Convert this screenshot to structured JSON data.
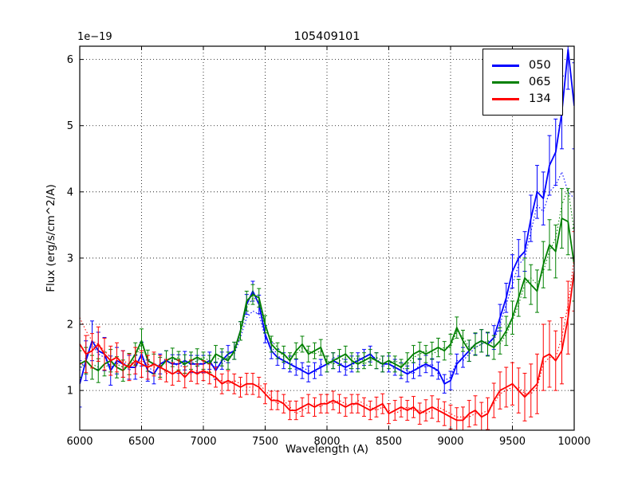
{
  "chart_data": {
    "type": "line",
    "title": "105409101",
    "offset_text": "1e−19",
    "xlabel": "Wavelength (A)",
    "ylabel": "Flux (erg/s/cm^2/A)",
    "xlim": [
      6000,
      10000
    ],
    "ylim": [
      0.4,
      6.2
    ],
    "xticks": [
      6000,
      6500,
      7000,
      7500,
      8000,
      8500,
      9000,
      9500,
      10000
    ],
    "yticks": [
      1,
      2,
      3,
      4,
      5,
      6
    ],
    "grid": true,
    "legend_position": "upper right",
    "x": [
      6000,
      6050,
      6100,
      6150,
      6200,
      6250,
      6300,
      6350,
      6400,
      6450,
      6500,
      6550,
      6600,
      6650,
      6700,
      6750,
      6800,
      6850,
      6900,
      6950,
      7000,
      7050,
      7100,
      7150,
      7200,
      7250,
      7300,
      7350,
      7400,
      7450,
      7500,
      7550,
      7600,
      7650,
      7700,
      7750,
      7800,
      7850,
      7900,
      7950,
      8000,
      8050,
      8100,
      8150,
      8200,
      8250,
      8300,
      8350,
      8400,
      8450,
      8500,
      8550,
      8600,
      8650,
      8700,
      8750,
      8800,
      8850,
      8900,
      8950,
      9000,
      9050,
      9100,
      9150,
      9200,
      9250,
      9300,
      9350,
      9400,
      9450,
      9500,
      9550,
      9600,
      9650,
      9700,
      9750,
      9800,
      9850,
      9900,
      9950,
      10000
    ],
    "series": [
      {
        "name": "050",
        "color": "#0000ff",
        "values": [
          1.1,
          1.45,
          1.75,
          1.6,
          1.55,
          1.3,
          1.45,
          1.4,
          1.35,
          1.35,
          1.55,
          1.3,
          1.25,
          1.4,
          1.45,
          1.4,
          1.4,
          1.45,
          1.4,
          1.4,
          1.4,
          1.45,
          1.3,
          1.45,
          1.55,
          1.6,
          1.9,
          2.3,
          2.5,
          2.3,
          1.85,
          1.6,
          1.5,
          1.45,
          1.4,
          1.35,
          1.3,
          1.25,
          1.3,
          1.35,
          1.4,
          1.45,
          1.4,
          1.35,
          1.4,
          1.45,
          1.5,
          1.55,
          1.45,
          1.4,
          1.4,
          1.35,
          1.3,
          1.25,
          1.3,
          1.35,
          1.4,
          1.35,
          1.3,
          1.1,
          1.15,
          1.4,
          1.5,
          1.6,
          1.7,
          1.75,
          1.7,
          1.8,
          2.1,
          2.4,
          2.8,
          3.0,
          3.1,
          3.6,
          4.0,
          3.9,
          4.4,
          4.6,
          5.2,
          6.15,
          5.3
        ],
        "err": [
          0.35,
          0.3,
          0.3,
          0.28,
          0.25,
          0.22,
          0.2,
          0.2,
          0.18,
          0.18,
          0.18,
          0.16,
          0.15,
          0.15,
          0.15,
          0.14,
          0.14,
          0.14,
          0.13,
          0.13,
          0.13,
          0.13,
          0.13,
          0.13,
          0.13,
          0.13,
          0.14,
          0.15,
          0.15,
          0.14,
          0.13,
          0.12,
          0.12,
          0.12,
          0.12,
          0.12,
          0.12,
          0.12,
          0.12,
          0.12,
          0.12,
          0.12,
          0.12,
          0.12,
          0.12,
          0.12,
          0.12,
          0.12,
          0.12,
          0.12,
          0.12,
          0.12,
          0.12,
          0.12,
          0.12,
          0.13,
          0.13,
          0.13,
          0.13,
          0.14,
          0.14,
          0.15,
          0.15,
          0.16,
          0.16,
          0.17,
          0.17,
          0.18,
          0.2,
          0.22,
          0.25,
          0.28,
          0.3,
          0.35,
          0.4,
          0.4,
          0.45,
          0.5,
          0.55,
          0.6,
          0.65
        ],
        "dotted_values": [
          1.3,
          1.5,
          1.7,
          1.55,
          1.5,
          1.35,
          1.4,
          1.45,
          1.3,
          1.4,
          1.5,
          1.35,
          1.3,
          1.35,
          1.5,
          1.45,
          1.35,
          1.4,
          1.45,
          1.35,
          1.45,
          1.4,
          1.35,
          1.4,
          1.5,
          1.55,
          1.8,
          2.1,
          2.2,
          2.15,
          1.8,
          1.65,
          1.55,
          1.4,
          1.45,
          1.3,
          1.35,
          1.3,
          1.25,
          1.4,
          1.35,
          1.5,
          1.45,
          1.3,
          1.35,
          1.5,
          1.45,
          1.5,
          1.5,
          1.35,
          1.45,
          1.3,
          1.35,
          1.3,
          1.25,
          1.4,
          1.35,
          1.4,
          1.25,
          1.15,
          1.2,
          1.45,
          1.45,
          1.55,
          1.65,
          1.7,
          1.75,
          1.75,
          2.0,
          2.3,
          2.6,
          2.9,
          3.0,
          3.4,
          3.8,
          3.7,
          4.0,
          4.1,
          4.3,
          4.0,
          3.9
        ]
      },
      {
        "name": "065",
        "color": "#008000",
        "values": [
          1.4,
          1.45,
          1.35,
          1.3,
          1.4,
          1.45,
          1.35,
          1.3,
          1.4,
          1.55,
          1.75,
          1.45,
          1.4,
          1.35,
          1.45,
          1.5,
          1.45,
          1.4,
          1.45,
          1.5,
          1.45,
          1.4,
          1.55,
          1.5,
          1.45,
          1.6,
          1.9,
          2.35,
          2.45,
          2.4,
          2.0,
          1.7,
          1.6,
          1.55,
          1.45,
          1.6,
          1.7,
          1.55,
          1.6,
          1.65,
          1.4,
          1.45,
          1.5,
          1.55,
          1.45,
          1.4,
          1.45,
          1.5,
          1.45,
          1.4,
          1.45,
          1.4,
          1.35,
          1.45,
          1.55,
          1.6,
          1.55,
          1.6,
          1.65,
          1.6,
          1.7,
          1.95,
          1.75,
          1.6,
          1.7,
          1.75,
          1.7,
          1.65,
          1.75,
          1.9,
          2.1,
          2.4,
          2.7,
          2.6,
          2.5,
          2.9,
          3.2,
          3.1,
          3.6,
          3.55,
          2.9
        ],
        "err": [
          0.2,
          0.2,
          0.18,
          0.18,
          0.18,
          0.17,
          0.16,
          0.16,
          0.16,
          0.17,
          0.18,
          0.16,
          0.15,
          0.15,
          0.15,
          0.14,
          0.14,
          0.14,
          0.13,
          0.13,
          0.13,
          0.13,
          0.13,
          0.13,
          0.13,
          0.13,
          0.14,
          0.15,
          0.15,
          0.14,
          0.13,
          0.12,
          0.12,
          0.12,
          0.12,
          0.12,
          0.12,
          0.12,
          0.12,
          0.12,
          0.12,
          0.12,
          0.12,
          0.12,
          0.12,
          0.12,
          0.12,
          0.12,
          0.12,
          0.12,
          0.12,
          0.12,
          0.12,
          0.12,
          0.13,
          0.13,
          0.13,
          0.13,
          0.14,
          0.14,
          0.15,
          0.16,
          0.16,
          0.16,
          0.17,
          0.17,
          0.18,
          0.18,
          0.2,
          0.22,
          0.25,
          0.28,
          0.3,
          0.3,
          0.32,
          0.35,
          0.38,
          0.4,
          0.45,
          0.5,
          0.55
        ],
        "dotted_values": [
          1.35,
          1.4,
          1.4,
          1.35,
          1.35,
          1.4,
          1.4,
          1.35,
          1.35,
          1.5,
          1.7,
          1.5,
          1.35,
          1.4,
          1.4,
          1.45,
          1.5,
          1.35,
          1.4,
          1.45,
          1.5,
          1.45,
          1.5,
          1.45,
          1.5,
          1.55,
          1.85,
          2.25,
          2.4,
          2.35,
          1.95,
          1.75,
          1.65,
          1.5,
          1.5,
          1.55,
          1.65,
          1.6,
          1.55,
          1.6,
          1.45,
          1.4,
          1.45,
          1.5,
          1.5,
          1.45,
          1.4,
          1.45,
          1.5,
          1.45,
          1.4,
          1.45,
          1.4,
          1.4,
          1.5,
          1.55,
          1.6,
          1.55,
          1.6,
          1.65,
          1.65,
          1.9,
          1.8,
          1.65,
          1.65,
          1.7,
          1.75,
          1.7,
          1.7,
          1.85,
          2.05,
          2.3,
          2.6,
          2.7,
          2.6,
          2.8,
          3.1,
          3.3,
          3.8,
          4.05,
          3.4
        ]
      },
      {
        "name": "134",
        "color": "#ff0000",
        "values": [
          1.7,
          1.55,
          1.6,
          1.7,
          1.55,
          1.45,
          1.5,
          1.4,
          1.35,
          1.45,
          1.4,
          1.35,
          1.4,
          1.35,
          1.3,
          1.25,
          1.3,
          1.2,
          1.3,
          1.25,
          1.3,
          1.25,
          1.2,
          1.1,
          1.15,
          1.1,
          1.05,
          1.1,
          1.1,
          1.05,
          0.95,
          0.85,
          0.85,
          0.8,
          0.7,
          0.7,
          0.75,
          0.8,
          0.75,
          0.8,
          0.8,
          0.85,
          0.8,
          0.75,
          0.8,
          0.8,
          0.75,
          0.7,
          0.75,
          0.8,
          0.65,
          0.7,
          0.75,
          0.7,
          0.75,
          0.65,
          0.7,
          0.75,
          0.7,
          0.65,
          0.6,
          0.55,
          0.55,
          0.65,
          0.7,
          0.6,
          0.65,
          0.85,
          1.0,
          1.05,
          1.1,
          1.0,
          0.9,
          1.0,
          1.1,
          1.5,
          1.55,
          1.45,
          1.6,
          2.1,
          2.8
        ],
        "err": [
          0.3,
          0.28,
          0.26,
          0.26,
          0.24,
          0.22,
          0.22,
          0.2,
          0.2,
          0.2,
          0.2,
          0.18,
          0.18,
          0.18,
          0.17,
          0.17,
          0.16,
          0.16,
          0.16,
          0.15,
          0.15,
          0.15,
          0.15,
          0.15,
          0.15,
          0.15,
          0.15,
          0.16,
          0.16,
          0.15,
          0.15,
          0.14,
          0.14,
          0.14,
          0.14,
          0.14,
          0.14,
          0.14,
          0.14,
          0.14,
          0.14,
          0.14,
          0.14,
          0.14,
          0.14,
          0.14,
          0.14,
          0.14,
          0.15,
          0.15,
          0.15,
          0.15,
          0.15,
          0.15,
          0.16,
          0.16,
          0.16,
          0.17,
          0.17,
          0.18,
          0.18,
          0.19,
          0.2,
          0.2,
          0.22,
          0.22,
          0.24,
          0.26,
          0.28,
          0.3,
          0.32,
          0.34,
          0.36,
          0.4,
          0.45,
          0.5,
          0.5,
          0.45,
          0.5,
          0.55,
          0.6
        ],
        "dotted_values": [
          2.1,
          1.9,
          1.75,
          1.7,
          1.6,
          1.5,
          1.45,
          1.45,
          1.4,
          1.4,
          1.45,
          1.4,
          1.35,
          1.4,
          1.25,
          1.3,
          1.25,
          1.25,
          1.25,
          1.3,
          1.25,
          1.3,
          1.15,
          1.15,
          1.1,
          1.15,
          1.1,
          1.05,
          1.05,
          1.1,
          1.0,
          0.9,
          0.8,
          0.85,
          0.75,
          0.65,
          0.7,
          0.75,
          0.8,
          0.75,
          0.85,
          0.8,
          0.85,
          0.8,
          0.75,
          0.85,
          0.8,
          0.75,
          0.7,
          0.75,
          0.7,
          0.65,
          0.7,
          0.75,
          0.7,
          0.7,
          0.65,
          0.7,
          0.75,
          0.7,
          0.65,
          0.6,
          0.6,
          0.6,
          0.65,
          0.65,
          0.7,
          0.8,
          0.95,
          1.0,
          1.05,
          1.05,
          0.95,
          0.95,
          1.05,
          1.4,
          1.5,
          1.5,
          1.8,
          2.3,
          3.0
        ]
      }
    ]
  }
}
